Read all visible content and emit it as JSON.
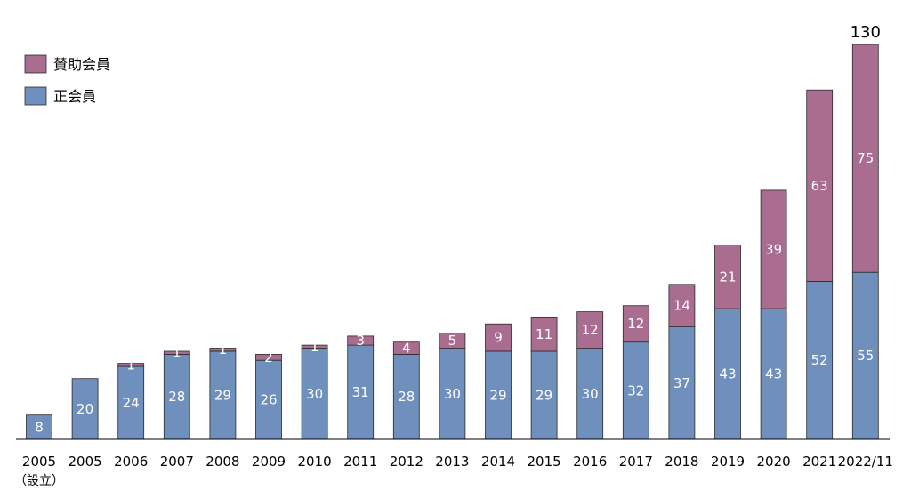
{
  "chart_data": {
    "type": "bar",
    "stacked": true,
    "categories": [
      "2005",
      "2005",
      "2006",
      "2007",
      "2008",
      "2009",
      "2010",
      "2011",
      "2012",
      "2013",
      "2014",
      "2015",
      "2016",
      "2017",
      "2018",
      "2019",
      "2020",
      "2021",
      "2022/11"
    ],
    "category_sublabels": [
      "（設立）",
      "",
      "",
      "",
      "",
      "",
      "",
      "",
      "",
      "",
      "",
      "",
      "",
      "",
      "",
      "",
      "",
      "",
      ""
    ],
    "series": [
      {
        "name": "正会員",
        "color": "#6f8fbd",
        "values": [
          8,
          20,
          24,
          28,
          29,
          26,
          30,
          31,
          28,
          30,
          29,
          29,
          30,
          32,
          37,
          43,
          43,
          52,
          55
        ]
      },
      {
        "name": "賛助会員",
        "color": "#a96d8f",
        "values": [
          0,
          0,
          1,
          1,
          1,
          2,
          1,
          3,
          4,
          5,
          9,
          11,
          12,
          12,
          14,
          21,
          39,
          63,
          75
        ]
      }
    ],
    "total_labels": [
      {
        "index": 18,
        "text": "130"
      }
    ],
    "ylim": [
      0,
      130
    ],
    "grid": false,
    "legend": {
      "position": "top-left",
      "items": [
        {
          "label": "賛助会員",
          "color": "#a96d8f"
        },
        {
          "label": "正会員",
          "color": "#6f8fbd"
        }
      ]
    }
  }
}
